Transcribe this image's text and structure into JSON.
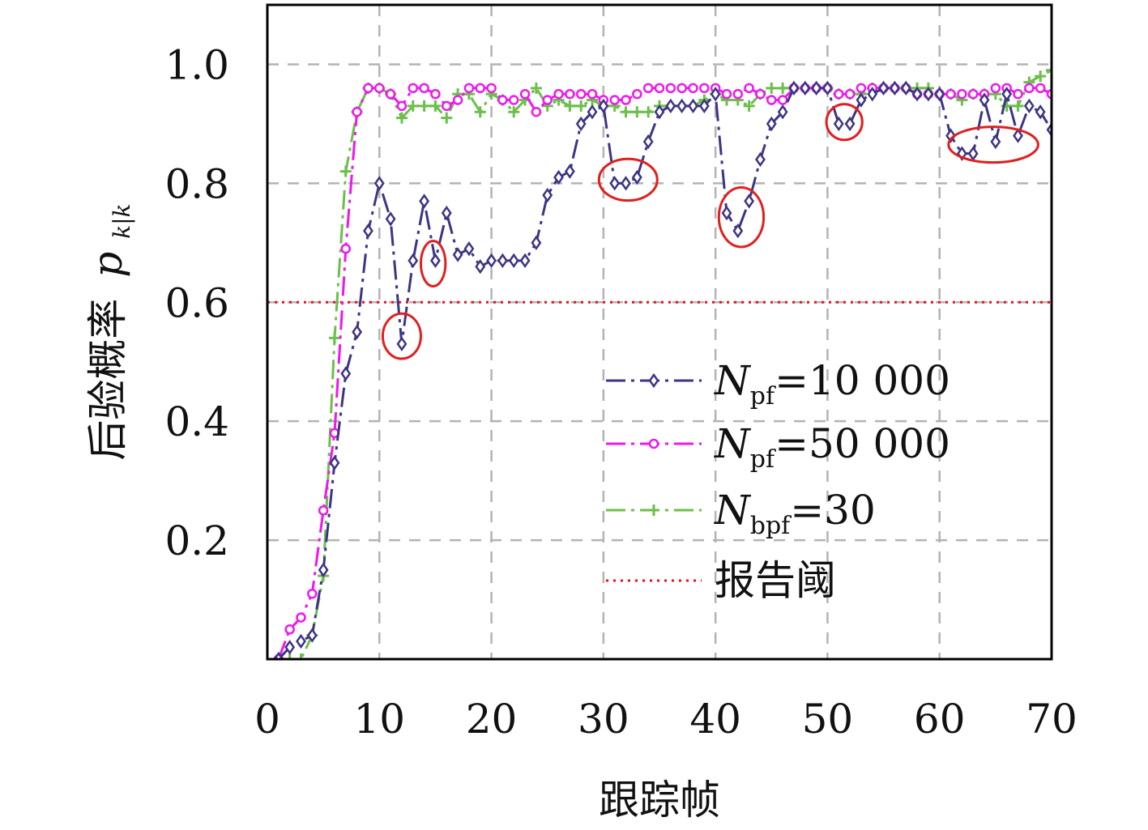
{
  "chart_data": {
    "type": "line",
    "xlabel": "跟踪帧",
    "ylabel": "后验概率",
    "ylabel_symbol": "p",
    "ylabel_subscript": "k|k",
    "xlim": [
      0,
      70
    ],
    "ylim": [
      0,
      1.1
    ],
    "x_ticks": [
      "0",
      "10",
      "20",
      "30",
      "40",
      "50",
      "60",
      "70"
    ],
    "y_ticks": [
      "0.2",
      "0.4",
      "0.6",
      "0.8",
      "1.0"
    ],
    "grid": true,
    "legend_position": "bottom-right",
    "threshold": {
      "name": "报告阈",
      "value": 0.6,
      "color": "#e8101a"
    },
    "series": [
      {
        "name_main": "N",
        "name_sub": "pf",
        "name_rest": "=10 000",
        "color": "#3d3584",
        "marker": "diamond",
        "x": [
          1,
          2,
          3,
          4,
          5,
          6,
          7,
          8,
          9,
          10,
          11,
          12,
          13,
          14,
          15,
          16,
          17,
          18,
          19,
          20,
          21,
          22,
          23,
          24,
          25,
          26,
          27,
          28,
          29,
          30,
          31,
          32,
          33,
          34,
          35,
          36,
          37,
          38,
          39,
          40,
          41,
          42,
          43,
          44,
          45,
          46,
          47,
          48,
          49,
          50,
          51,
          52,
          53,
          54,
          55,
          56,
          57,
          58,
          59,
          60,
          61,
          62,
          63,
          64,
          65,
          66,
          67,
          68,
          69,
          70
        ],
        "y": [
          0.0,
          0.02,
          0.03,
          0.04,
          0.15,
          0.33,
          0.48,
          0.55,
          0.72,
          0.8,
          0.74,
          0.53,
          0.67,
          0.77,
          0.67,
          0.75,
          0.68,
          0.69,
          0.66,
          0.67,
          0.67,
          0.67,
          0.67,
          0.7,
          0.78,
          0.81,
          0.82,
          0.9,
          0.92,
          0.93,
          0.8,
          0.8,
          0.81,
          0.87,
          0.92,
          0.93,
          0.93,
          0.93,
          0.93,
          0.95,
          0.75,
          0.72,
          0.77,
          0.84,
          0.9,
          0.92,
          0.96,
          0.96,
          0.96,
          0.96,
          0.9,
          0.9,
          0.94,
          0.95,
          0.96,
          0.96,
          0.96,
          0.95,
          0.95,
          0.95,
          0.88,
          0.85,
          0.85,
          0.94,
          0.87,
          0.95,
          0.88,
          0.93,
          0.92,
          0.89
        ]
      },
      {
        "name_main": "N",
        "name_sub": "pf",
        "name_rest": "=50 000",
        "color": "#ee18ee",
        "marker": "circle",
        "x": [
          1,
          2,
          3,
          4,
          5,
          6,
          7,
          8,
          9,
          10,
          11,
          12,
          13,
          14,
          15,
          16,
          17,
          18,
          19,
          20,
          21,
          22,
          23,
          24,
          25,
          26,
          27,
          28,
          29,
          30,
          31,
          32,
          33,
          34,
          35,
          36,
          37,
          38,
          39,
          40,
          41,
          42,
          43,
          44,
          45,
          46,
          47,
          48,
          49,
          50,
          51,
          52,
          53,
          54,
          55,
          56,
          57,
          58,
          59,
          60,
          61,
          62,
          63,
          64,
          65,
          66,
          67,
          68,
          69,
          70
        ],
        "y": [
          0.0,
          0.05,
          0.07,
          0.11,
          0.25,
          0.38,
          0.69,
          0.92,
          0.96,
          0.96,
          0.95,
          0.93,
          0.96,
          0.96,
          0.95,
          0.93,
          0.94,
          0.96,
          0.96,
          0.96,
          0.94,
          0.94,
          0.95,
          0.92,
          0.94,
          0.95,
          0.95,
          0.95,
          0.95,
          0.94,
          0.94,
          0.94,
          0.95,
          0.96,
          0.96,
          0.96,
          0.96,
          0.96,
          0.96,
          0.96,
          0.95,
          0.95,
          0.96,
          0.95,
          0.94,
          0.94,
          0.96,
          0.96,
          0.96,
          0.96,
          0.95,
          0.95,
          0.96,
          0.96,
          0.96,
          0.96,
          0.96,
          0.95,
          0.95,
          0.95,
          0.95,
          0.95,
          0.95,
          0.95,
          0.96,
          0.96,
          0.95,
          0.96,
          0.96,
          0.95
        ]
      },
      {
        "name_main": "N",
        "name_sub": "bpf",
        "name_rest": "=30",
        "color": "#6cbf4a",
        "marker": "plus",
        "x": [
          1,
          2,
          3,
          4,
          5,
          6,
          7,
          8,
          9,
          10,
          11,
          12,
          13,
          14,
          15,
          16,
          17,
          18,
          19,
          20,
          21,
          22,
          23,
          24,
          25,
          26,
          27,
          28,
          29,
          30,
          31,
          32,
          33,
          34,
          35,
          36,
          37,
          38,
          39,
          40,
          41,
          42,
          43,
          44,
          45,
          46,
          47,
          48,
          49,
          50,
          51,
          52,
          53,
          54,
          55,
          56,
          57,
          58,
          59,
          60,
          61,
          62,
          63,
          64,
          65,
          66,
          67,
          68,
          69,
          70
        ],
        "y": [
          0.0,
          0.0,
          0.0,
          0.04,
          0.14,
          0.54,
          0.82,
          0.92,
          0.96,
          0.96,
          0.95,
          0.91,
          0.93,
          0.93,
          0.93,
          0.91,
          0.95,
          0.95,
          0.92,
          0.95,
          0.94,
          0.92,
          0.94,
          0.96,
          0.93,
          0.94,
          0.93,
          0.93,
          0.94,
          0.93,
          0.93,
          0.92,
          0.92,
          0.92,
          0.93,
          0.93,
          0.93,
          0.93,
          0.94,
          0.95,
          0.94,
          0.94,
          0.93,
          0.95,
          0.96,
          0.96,
          0.96,
          0.96,
          0.96,
          0.96,
          0.95,
          0.95,
          0.95,
          0.96,
          0.96,
          0.96,
          0.96,
          0.96,
          0.96,
          0.95,
          0.95,
          0.94,
          0.95,
          0.95,
          0.95,
          0.93,
          0.93,
          0.97,
          0.98,
          0.99
        ]
      }
    ],
    "annotations": [
      {
        "shape": "ellipse",
        "x": 12,
        "y": 0.543,
        "rx_frames": 1.7,
        "ry_value": 0.038,
        "color": "#e02020"
      },
      {
        "shape": "ellipse",
        "x": 14.8,
        "y": 0.665,
        "rx_frames": 1.1,
        "ry_value": 0.038,
        "color": "#e02020"
      },
      {
        "shape": "ellipse",
        "x": 32.2,
        "y": 0.806,
        "rx_frames": 2.6,
        "ry_value": 0.035,
        "color": "#e02020"
      },
      {
        "shape": "ellipse",
        "x": 42.3,
        "y": 0.743,
        "rx_frames": 2.0,
        "ry_value": 0.05,
        "color": "#e02020"
      },
      {
        "shape": "ellipse",
        "x": 51.5,
        "y": 0.903,
        "rx_frames": 1.6,
        "ry_value": 0.03,
        "color": "#e02020"
      },
      {
        "shape": "ellipse",
        "x": 64.8,
        "y": 0.865,
        "rx_frames": 4.0,
        "ry_value": 0.03,
        "color": "#e02020"
      }
    ]
  }
}
